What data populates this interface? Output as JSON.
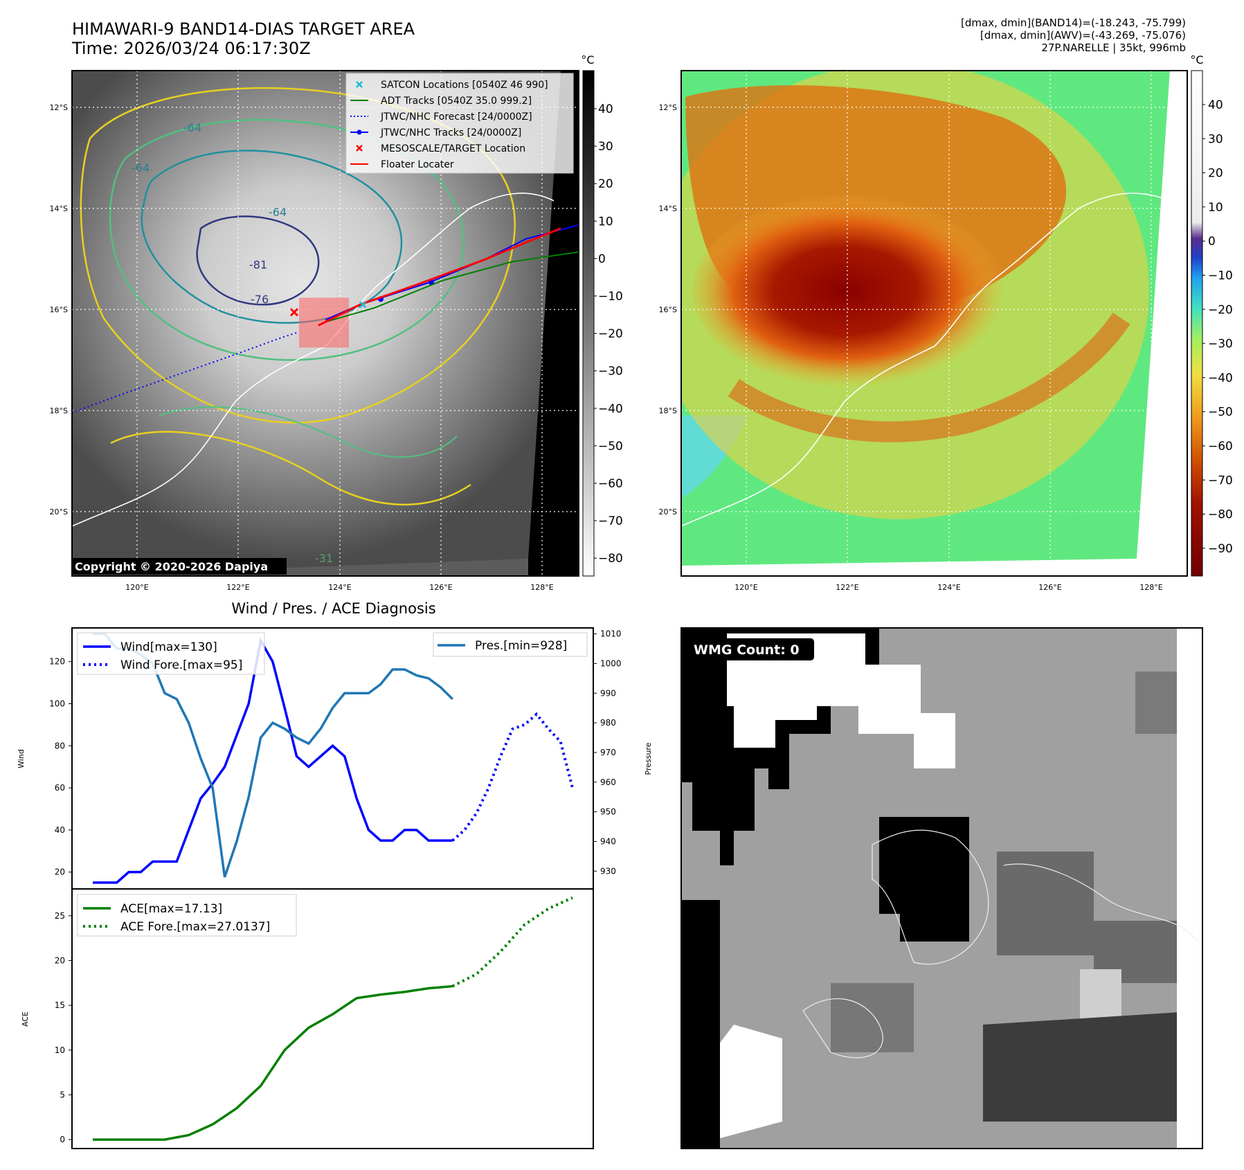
{
  "header": {
    "title_line1": "HIMAWARI-9 BAND14-DIAS TARGET AREA",
    "title_line2": "Time: 2026/03/24 06:17:30Z",
    "stats_line1": "[dmax, dmin](BAND14)=(-18.243, -75.799)",
    "stats_line2": "[dmax, dmin](AWV)=(-43.269, -75.076)",
    "stats_line3": "27P.NARELLE | 35kt, 996mb"
  },
  "map_axes": {
    "lat_labels": [
      "12°S",
      "14°S",
      "16°S",
      "18°S",
      "20°S"
    ],
    "lon_labels": [
      "120°E",
      "122°E",
      "124°E",
      "126°E",
      "128°E"
    ],
    "colorbar_unit": "°C",
    "colorbar_left_ticks": [
      "40",
      "30",
      "20",
      "10",
      "0",
      "−10",
      "−20",
      "−30",
      "−40",
      "−50",
      "−60",
      "−70",
      "−80"
    ],
    "colorbar_right_ticks": [
      "40",
      "30",
      "20",
      "10",
      "0",
      "−10",
      "−20",
      "−30",
      "−40",
      "−50",
      "−60",
      "−70",
      "−80",
      "−90"
    ],
    "contour_labels": [
      "-64",
      "-64",
      "-64",
      "-81",
      "-76",
      "-31"
    ],
    "copyright": "Copyright © 2020-2026 Dapiya"
  },
  "map_legend": [
    {
      "label": "SATCON Locations [0540Z 46 990]",
      "color": "#17becf",
      "marker": "x"
    },
    {
      "label": "ADT Tracks [0540Z 35.0 999.2]",
      "color": "#008000",
      "marker": "line"
    },
    {
      "label": "JTWC/NHC Forecast [24/0000Z]",
      "color": "#0000ff",
      "marker": "dotted"
    },
    {
      "label": "JTWC/NHC Tracks [24/0000Z]",
      "color": "#0000ff",
      "marker": "line-dot"
    },
    {
      "label": "MESOSCALE/TARGET Location",
      "color": "#ff0000",
      "marker": "x"
    },
    {
      "label": "Floater Locater",
      "color": "#ff0000",
      "marker": "line"
    }
  ],
  "wmg": {
    "label": "WMG Count: 0"
  },
  "chart_data": [
    {
      "type": "line",
      "title": "Wind / Pres. / ACE Diagnosis",
      "ylabel": "Wind",
      "y2label": "Pressure",
      "ylim": [
        12,
        136
      ],
      "y2lim": [
        924,
        1012
      ],
      "yticks": [
        20,
        40,
        60,
        80,
        100,
        120
      ],
      "y2ticks": [
        930,
        940,
        950,
        960,
        970,
        980,
        990,
        1000,
        1010
      ],
      "legend_left": [
        "Wind[max=130]",
        "Wind Fore.[max=95]"
      ],
      "legend_right": [
        "Pres.[min=928]"
      ],
      "series": [
        {
          "name": "Wind[max=130]",
          "axis": "left",
          "color": "#0000ff",
          "style": "solid",
          "x": [
            0,
            1,
            2,
            3,
            4,
            5,
            6,
            7,
            8,
            9,
            10,
            11,
            12,
            13,
            14,
            15,
            16,
            17,
            18,
            19,
            20,
            21,
            22,
            23,
            24,
            25,
            26,
            27,
            28,
            29,
            30
          ],
          "values": [
            15,
            15,
            15,
            20,
            20,
            25,
            25,
            25,
            40,
            55,
            62,
            70,
            85,
            100,
            130,
            120,
            98,
            75,
            70,
            75,
            80,
            75,
            55,
            40,
            35,
            35,
            40,
            40,
            35,
            35,
            35
          ]
        },
        {
          "name": "Wind Fore.[max=95]",
          "axis": "left",
          "color": "#0000ff",
          "style": "dotted",
          "x": [
            30,
            31,
            32,
            33,
            34,
            35,
            36,
            37,
            38,
            39,
            40
          ],
          "values": [
            35,
            40,
            48,
            60,
            75,
            88,
            90,
            95,
            88,
            82,
            60
          ]
        },
        {
          "name": "Pres.[min=928]",
          "axis": "right",
          "color": "#1f77b4",
          "style": "solid",
          "x": [
            0,
            1,
            2,
            3,
            4,
            5,
            6,
            7,
            8,
            9,
            10,
            11,
            12,
            13,
            14,
            15,
            16,
            17,
            18,
            19,
            20,
            21,
            22,
            23,
            24,
            25,
            26,
            27,
            28,
            29,
            30
          ],
          "values": [
            1010,
            1010,
            1005,
            1005,
            1003,
            1000,
            990,
            988,
            980,
            968,
            958,
            928,
            940,
            955,
            975,
            980,
            978,
            975,
            973,
            978,
            985,
            990,
            990,
            990,
            993,
            998,
            998,
            996,
            995,
            992,
            988
          ]
        }
      ]
    },
    {
      "type": "line",
      "ylabel": "ACE",
      "ylim": [
        -1,
        28
      ],
      "yticks": [
        0,
        5,
        10,
        15,
        20,
        25
      ],
      "legend": [
        "ACE[max=17.13]",
        "ACE Fore.[max=27.0137]"
      ],
      "series": [
        {
          "name": "ACE[max=17.13]",
          "color": "#008000",
          "style": "solid",
          "x": [
            0,
            3,
            6,
            8,
            10,
            12,
            14,
            16,
            18,
            20,
            22,
            24,
            26,
            28,
            30
          ],
          "values": [
            0,
            0,
            0,
            0.5,
            1.7,
            3.5,
            6,
            10,
            12.5,
            14,
            15.8,
            16.2,
            16.5,
            16.9,
            17.13
          ]
        },
        {
          "name": "ACE Fore.[max=27.0137]",
          "color": "#008000",
          "style": "dotted",
          "x": [
            30,
            32,
            34,
            36,
            38,
            40
          ],
          "values": [
            17.13,
            18.5,
            21,
            24,
            25.8,
            27.0137
          ]
        }
      ]
    }
  ]
}
